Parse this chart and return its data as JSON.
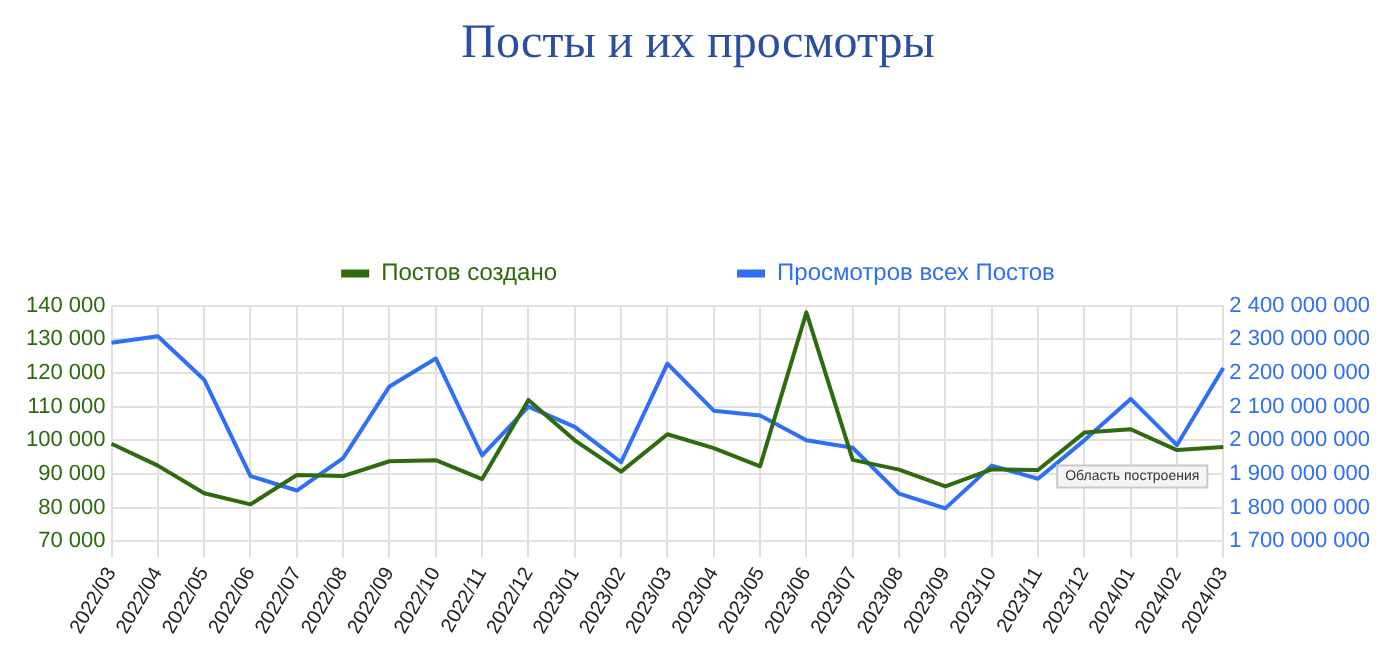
{
  "chart_data": {
    "type": "line",
    "title": "Посты и их просмотры",
    "categories": [
      "2022/03",
      "2022/04",
      "2022/05",
      "2022/06",
      "2022/07",
      "2022/08",
      "2022/09",
      "2022/10",
      "2022/11",
      "2022/12",
      "2023/01",
      "2023/02",
      "2023/03",
      "2023/04",
      "2023/05",
      "2023/06",
      "2023/07",
      "2023/08",
      "2023/09",
      "2023/10",
      "2023/11",
      "2023/12",
      "2024/01",
      "2024/02",
      "2024/03"
    ],
    "series": [
      {
        "name": "Постов создано",
        "color": "#2e6a0e",
        "values": [
          99000,
          92500,
          84300,
          81000,
          89700,
          89400,
          93800,
          94100,
          88500,
          112000,
          100000,
          90700,
          101800,
          97700,
          92300,
          138000,
          94200,
          91300,
          86300,
          91400,
          91200,
          102300,
          103300,
          97100,
          98000
        ]
      },
      {
        "name": "Просмотров всех Постов",
        "color": "#2f6ff5",
        "axis": "y2",
        "values": [
          2290000000,
          2309000000,
          2180000000,
          1894000000,
          1851000000,
          1947000000,
          2160000000,
          2243000000,
          1955000000,
          2100000000,
          2040000000,
          1935000000,
          2228000000,
          2088000000,
          2074000000,
          2000000000,
          1978000000,
          1842000000,
          1798000000,
          1925000000,
          1886000000,
          2000000000,
          2123000000,
          1986000000,
          2215000000
        ]
      }
    ],
    "ylim": [
      70000,
      140000
    ],
    "yticks": [
      {
        "value": 70000,
        "label": "70 000"
      },
      {
        "value": 80000,
        "label": "80 000"
      },
      {
        "value": 90000,
        "label": "90 000"
      },
      {
        "value": 100000,
        "label": "100 000"
      },
      {
        "value": 110000,
        "label": "110 000"
      },
      {
        "value": 120000,
        "label": "120 000"
      },
      {
        "value": 130000,
        "label": "130 000"
      },
      {
        "value": 140000,
        "label": "140 000"
      }
    ],
    "y2lim": [
      1700000000,
      2400000000
    ],
    "y2ticks": [
      {
        "value": 1700000000,
        "label": "1 700 000 000"
      },
      {
        "value": 1800000000,
        "label": "1 800 000 000"
      },
      {
        "value": 1900000000,
        "label": "1 900 000 000"
      },
      {
        "value": 2000000000,
        "label": "2 000 000 000"
      },
      {
        "value": 2100000000,
        "label": "2 100 000 000"
      },
      {
        "value": 2200000000,
        "label": "2 200 000 000"
      },
      {
        "value": 2300000000,
        "label": "2 300 000 000"
      },
      {
        "value": 2400000000,
        "label": "2 400 000 000"
      }
    ],
    "grid": true,
    "legend": "top",
    "marker": "none",
    "line_style": "solid",
    "annotations": [
      "Область построения"
    ]
  }
}
